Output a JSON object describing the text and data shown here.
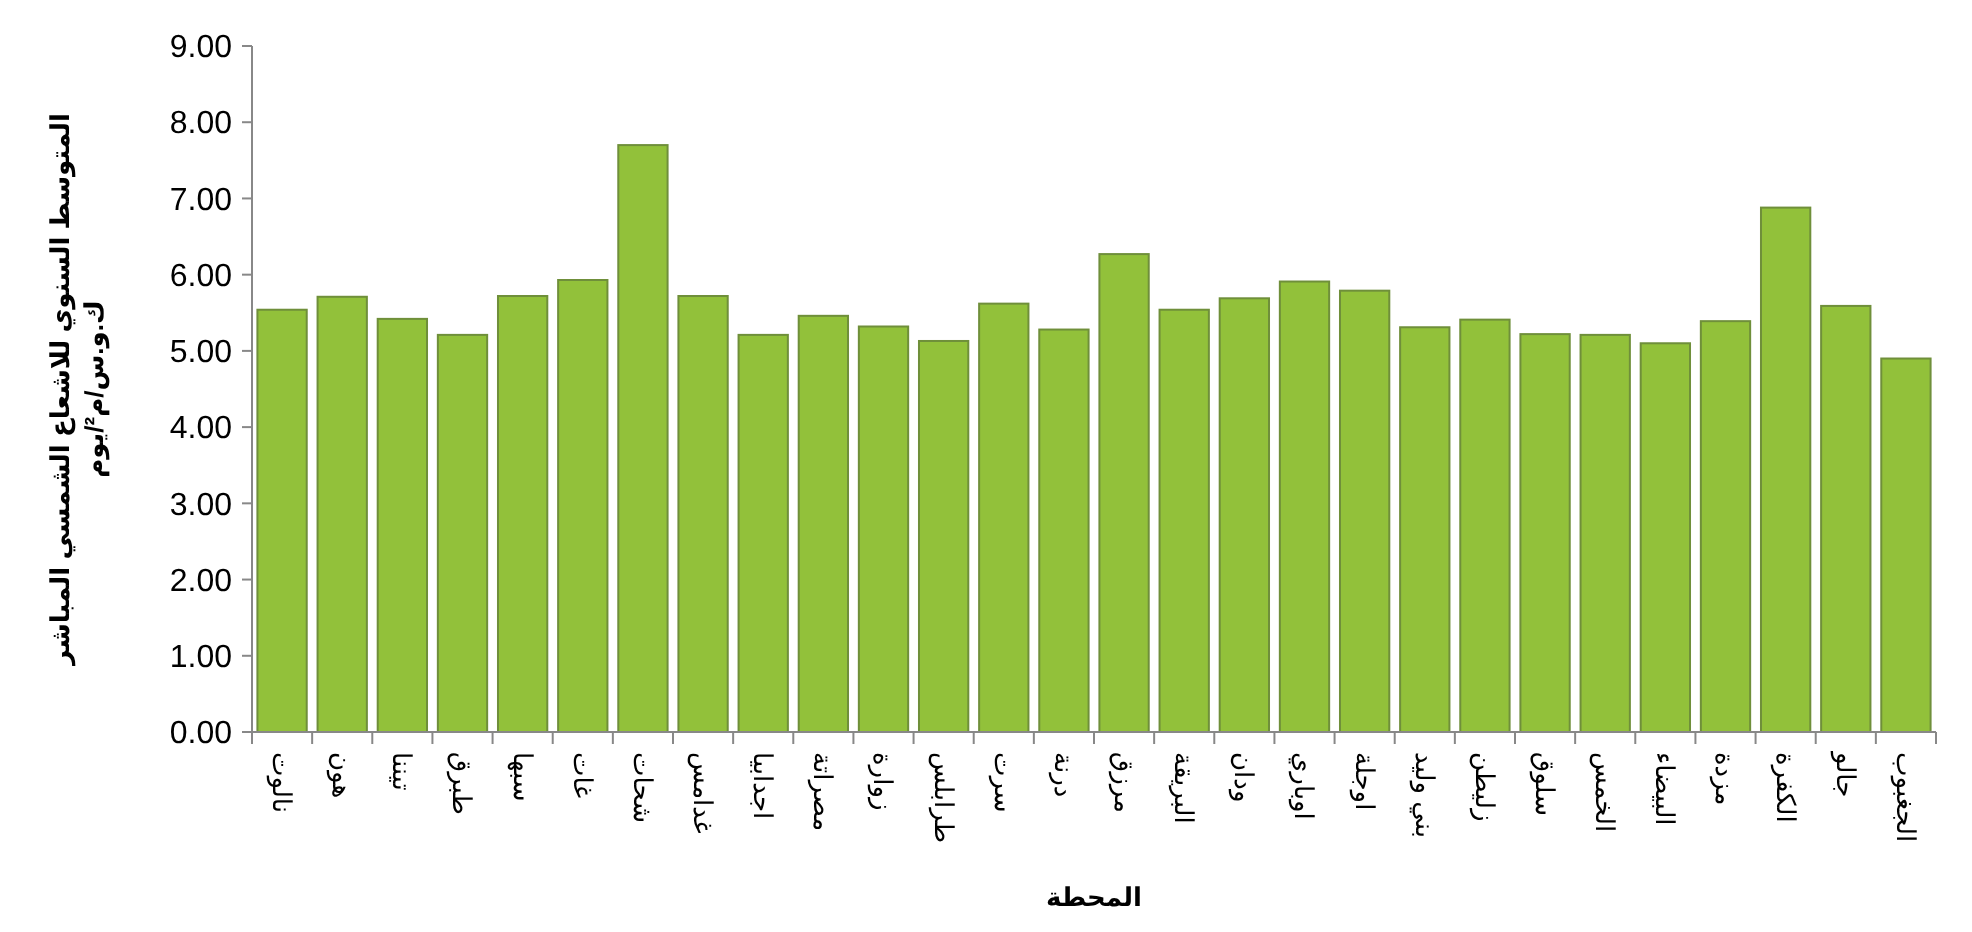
{
  "chart_data": {
    "type": "bar",
    "xlabel": "المحطة",
    "ylabel": "المتوسط السنوي للاشعاع الشمسي المباشر\nك.و.س/م²/يوم",
    "categories": [
      "نالوت",
      "هون",
      "تيننا",
      "طبرق",
      "سبها",
      "غات",
      "شحات",
      "غدامس",
      "اجدابيا",
      "مصراتة",
      "زوارة",
      "طرابلس",
      "سرت",
      "درنة",
      "مرزق",
      "البريقة",
      "ودان",
      "اوباري",
      "اوجلة",
      "بني وليد",
      "زليطن",
      "سلوق",
      "الخمس",
      "البيضاء",
      "مزدة",
      "الكفرة",
      "جالو",
      "الجغبوب"
    ],
    "values": [
      5.54,
      5.71,
      5.42,
      5.21,
      5.72,
      5.93,
      7.7,
      5.72,
      5.21,
      5.46,
      5.32,
      5.13,
      5.62,
      5.28,
      6.27,
      5.54,
      5.69,
      5.91,
      5.79,
      5.31,
      5.41,
      5.22,
      5.21,
      5.1,
      5.39,
      6.88,
      5.59,
      4.9
    ],
    "color": "#92c13a",
    "ylim": [
      0,
      9
    ],
    "yticks": [
      {
        "value": 0,
        "label": "0.00"
      },
      {
        "value": 1,
        "label": "1.00"
      },
      {
        "value": 2,
        "label": "2.00"
      },
      {
        "value": 3,
        "label": "3.00"
      },
      {
        "value": 4,
        "label": "4.00"
      },
      {
        "value": 5,
        "label": "5.00"
      },
      {
        "value": 6,
        "label": "6.00"
      },
      {
        "value": 7,
        "label": "7.00"
      },
      {
        "value": 8,
        "label": "8.00"
      },
      {
        "value": 9,
        "label": "9.00"
      }
    ],
    "grid": false
  }
}
